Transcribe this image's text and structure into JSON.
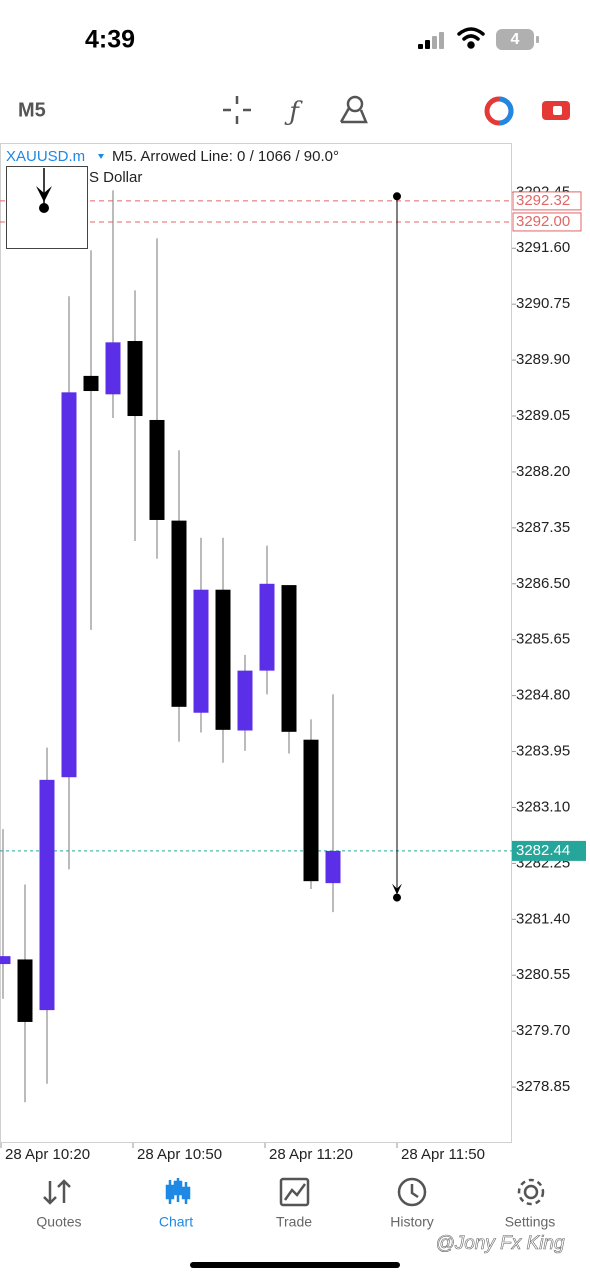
{
  "status_bar": {
    "time": "4:39",
    "battery": "4"
  },
  "toolbar": {
    "timeframe": "M5"
  },
  "chart_data": {
    "type": "candlestick",
    "symbol": "XAUUSD.m",
    "title": "M5. Arrowed Line: 0 / 1066 / 90.0°",
    "subtitle": "S Dollar",
    "categories": [
      "28 Apr 10:20",
      null,
      null,
      null,
      null,
      null,
      "28 Apr 10:50",
      null,
      null,
      null,
      null,
      null,
      "28 Apr 11:20",
      null,
      null,
      null,
      null,
      null,
      "28 Apr 11:50"
    ],
    "open": [
      3280.72,
      3280.79,
      3280.02,
      3283.56,
      3289.66,
      3289.38,
      3290.19,
      3288.99,
      3287.46,
      3284.54,
      3286.41,
      3284.27,
      3285.18,
      3286.48,
      3284.13,
      3281.95,
      null,
      null,
      null
    ],
    "high": [
      3282.77,
      3281.93,
      3284.01,
      3290.87,
      3291.57,
      3292.48,
      3290.96,
      3291.75,
      3288.53,
      3287.2,
      3287.2,
      3285.42,
      3287.08,
      3286.48,
      3284.44,
      3284.82,
      null,
      null,
      null
    ],
    "low": [
      3280.19,
      3278.62,
      3278.9,
      3282.16,
      3285.8,
      3289.02,
      3287.15,
      3286.88,
      3284.1,
      3284.24,
      3283.78,
      3283.96,
      3284.82,
      3283.92,
      3281.86,
      3281.51,
      null,
      null,
      null
    ],
    "close": [
      3280.84,
      3279.84,
      3283.52,
      3289.41,
      3289.43,
      3290.17,
      3289.05,
      3287.47,
      3284.63,
      3286.41,
      3284.28,
      3285.18,
      3286.5,
      3284.25,
      3281.98,
      3282.44,
      null,
      null,
      null
    ],
    "up_color": "#5b2ee8",
    "down_color": "#000000",
    "ylim": [
      3278.0,
      3293.2
    ],
    "yticks": [
      {
        "value": 3292.45,
        "label": "3292.45"
      },
      {
        "value": 3291.6,
        "label": "3291.60"
      },
      {
        "value": 3290.75,
        "label": "3290.75"
      },
      {
        "value": 3289.9,
        "label": "3289.90"
      },
      {
        "value": 3289.05,
        "label": "3289.05"
      },
      {
        "value": 3288.2,
        "label": "3288.20"
      },
      {
        "value": 3287.35,
        "label": "3287.35"
      },
      {
        "value": 3286.5,
        "label": "3286.50"
      },
      {
        "value": 3285.65,
        "label": "3285.65"
      },
      {
        "value": 3284.8,
        "label": "3284.80"
      },
      {
        "value": 3283.95,
        "label": "3283.95"
      },
      {
        "value": 3283.1,
        "label": "3283.10"
      },
      {
        "value": 3282.25,
        "label": "3282.25"
      },
      {
        "value": 3281.4,
        "label": "3281.40"
      },
      {
        "value": 3280.55,
        "label": "3280.55"
      },
      {
        "value": 3279.7,
        "label": "3279.70"
      },
      {
        "value": 3278.85,
        "label": "3278.85"
      }
    ],
    "price_lines": [
      {
        "value": 3292.32,
        "label": "3292.32",
        "color": "#e06666"
      },
      {
        "value": 3292.0,
        "label": "3292.00",
        "color": "#e06666"
      }
    ],
    "current_price": {
      "value": 3282.44,
      "label": "3282.44",
      "color": "#26a69a"
    },
    "arrow_line": {
      "values": [
        3292.39,
        3281.73
      ],
      "color": "#000000"
    }
  },
  "tabs": [
    {
      "label": "Quotes"
    },
    {
      "label": "Chart"
    },
    {
      "label": "Trade"
    },
    {
      "label": "History"
    },
    {
      "label": "Settings"
    }
  ],
  "active_tab": "Chart",
  "watermark": "@Jony Fx King"
}
